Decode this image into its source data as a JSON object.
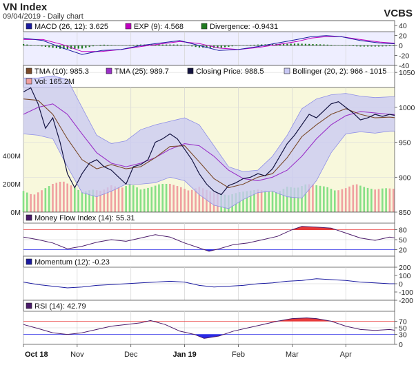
{
  "header": {
    "title": "VN Index",
    "subtitle": "09/04/2019 - Daily chart",
    "source": "VCBS"
  },
  "colors": {
    "macd": "#1a1aa0",
    "exp": "#c000c0",
    "divergence": "#1e7a1e",
    "tma10": "#7a4a2a",
    "tma25": "#9a30c8",
    "close": "#121240",
    "bollinger_fill": "#c8c8f4",
    "bollinger_edge": "#8e8ee6",
    "vol_up": "#86e086",
    "vol_down": "#f0a0a0",
    "mfi": "#4a1a6a",
    "momentum": "#1a1aa0",
    "rsi": "#4a1a6a",
    "over": "#e83a3a",
    "under": "#2a2ae6",
    "panel_bg": "#eeeeff",
    "main_bg": "#f8f8dc"
  },
  "macd_panel": {
    "legend": [
      {
        "label": "MACD (26, 12): 3.625",
        "color": "#1a1aa0"
      },
      {
        "label": "EXP (9): 4.568",
        "color": "#c000c0"
      },
      {
        "label": "Divergence: -0.9431",
        "color": "#1e7a1e"
      }
    ],
    "y_ticks": [
      "40",
      "20",
      "0",
      "-20",
      "-40"
    ]
  },
  "price_panel": {
    "legend": [
      {
        "label": "TMA (10): 985.3",
        "color": "#7a4a2a"
      },
      {
        "label": "TMA (25): 989.7",
        "color": "#9a30c8"
      },
      {
        "label": "Closing Price: 988.5",
        "color": "#121240"
      },
      {
        "label": "Bollinger (20, 2): 966 - 1015",
        "color": "#c8c8f4"
      },
      {
        "label": "Vol: 165.2M",
        "color": "#f0a0a0"
      }
    ],
    "y_ticks": [
      "1050",
      "1000",
      "950",
      "900",
      "850"
    ],
    "vol_ticks": [
      "400M",
      "200M",
      "0M"
    ]
  },
  "mfi_panel": {
    "legend": "Money Flow Index (14): 55.31",
    "y_ticks": [
      "80",
      "50",
      "20"
    ]
  },
  "momentum_panel": {
    "legend": "Momentum (12): -0.23",
    "y_ticks": [
      "200",
      "100",
      "0",
      "-100",
      "-200"
    ]
  },
  "rsi_panel": {
    "legend": "RSI (14): 42.79",
    "y_ticks": [
      "70",
      "50",
      "30",
      "0"
    ]
  },
  "x_axis": {
    "labels": [
      "Oct 18",
      "Nov",
      "Dec",
      "Jan 19",
      "Feb",
      "Mar",
      "Apr"
    ],
    "bold": [
      "Oct 18",
      "Jan 19"
    ]
  },
  "chart_data": {
    "type": "line",
    "title": "VN Index",
    "subtitle": "09/04/2019 - Daily chart",
    "x_range": [
      "2018-10-01",
      "2019-04-09"
    ],
    "close": [
      [
        0,
        1022
      ],
      [
        3,
        1028
      ],
      [
        6,
        1005
      ],
      [
        9,
        970
      ],
      [
        12,
        985
      ],
      [
        15,
        950
      ],
      [
        18,
        905
      ],
      [
        21,
        885
      ],
      [
        24,
        905
      ],
      [
        27,
        920
      ],
      [
        30,
        925
      ],
      [
        33,
        915
      ],
      [
        36,
        910
      ],
      [
        39,
        900
      ],
      [
        42,
        890
      ],
      [
        45,
        915
      ],
      [
        48,
        918
      ],
      [
        51,
        925
      ],
      [
        54,
        950
      ],
      [
        57,
        955
      ],
      [
        60,
        962
      ],
      [
        63,
        955
      ],
      [
        66,
        940
      ],
      [
        69,
        925
      ],
      [
        72,
        905
      ],
      [
        75,
        890
      ],
      [
        78,
        880
      ],
      [
        81,
        875
      ],
      [
        84,
        888
      ],
      [
        87,
        892
      ],
      [
        90,
        898
      ],
      [
        93,
        900
      ],
      [
        96,
        905
      ],
      [
        99,
        902
      ],
      [
        102,
        912
      ],
      [
        105,
        930
      ],
      [
        108,
        948
      ],
      [
        111,
        960
      ],
      [
        114,
        975
      ],
      [
        117,
        990
      ],
      [
        120,
        985
      ],
      [
        123,
        995
      ],
      [
        126,
        1005
      ],
      [
        129,
        1008
      ],
      [
        132,
        1000
      ],
      [
        135,
        992
      ],
      [
        138,
        982
      ],
      [
        141,
        985
      ],
      [
        144,
        990
      ],
      [
        147,
        987
      ],
      [
        150,
        990
      ],
      [
        152,
        988.5
      ]
    ],
    "tma10": [
      [
        0,
        1012
      ],
      [
        6,
        1010
      ],
      [
        12,
        990
      ],
      [
        18,
        955
      ],
      [
        24,
        925
      ],
      [
        30,
        912
      ],
      [
        36,
        918
      ],
      [
        42,
        912
      ],
      [
        48,
        915
      ],
      [
        54,
        928
      ],
      [
        60,
        944
      ],
      [
        66,
        945
      ],
      [
        72,
        922
      ],
      [
        78,
        898
      ],
      [
        84,
        885
      ],
      [
        90,
        890
      ],
      [
        96,
        900
      ],
      [
        102,
        905
      ],
      [
        108,
        928
      ],
      [
        114,
        958
      ],
      [
        120,
        975
      ],
      [
        126,
        990
      ],
      [
        132,
        998
      ],
      [
        138,
        990
      ],
      [
        144,
        985
      ],
      [
        150,
        986
      ],
      [
        152,
        985.3
      ]
    ],
    "tma25": [
      [
        0,
        990
      ],
      [
        6,
        1000
      ],
      [
        12,
        1005
      ],
      [
        18,
        990
      ],
      [
        24,
        962
      ],
      [
        30,
        935
      ],
      [
        36,
        920
      ],
      [
        42,
        915
      ],
      [
        48,
        920
      ],
      [
        54,
        928
      ],
      [
        60,
        940
      ],
      [
        66,
        948
      ],
      [
        72,
        945
      ],
      [
        78,
        930
      ],
      [
        84,
        910
      ],
      [
        90,
        898
      ],
      [
        96,
        895
      ],
      [
        102,
        900
      ],
      [
        108,
        910
      ],
      [
        114,
        930
      ],
      [
        120,
        955
      ],
      [
        126,
        975
      ],
      [
        132,
        988
      ],
      [
        138,
        994
      ],
      [
        144,
        992
      ],
      [
        150,
        990
      ],
      [
        152,
        989.7
      ]
    ],
    "bollinger_upper": [
      [
        0,
        1042
      ],
      [
        6,
        1042
      ],
      [
        12,
        1045
      ],
      [
        18,
        1040
      ],
      [
        24,
        1000
      ],
      [
        30,
        960
      ],
      [
        36,
        948
      ],
      [
        42,
        952
      ],
      [
        48,
        968
      ],
      [
        54,
        975
      ],
      [
        60,
        980
      ],
      [
        66,
        985
      ],
      [
        72,
        975
      ],
      [
        78,
        945
      ],
      [
        84,
        915
      ],
      [
        90,
        908
      ],
      [
        96,
        910
      ],
      [
        102,
        930
      ],
      [
        108,
        960
      ],
      [
        114,
        998
      ],
      [
        120,
        1012
      ],
      [
        126,
        1018
      ],
      [
        132,
        1020
      ],
      [
        138,
        1016
      ],
      [
        144,
        1014
      ],
      [
        150,
        1015
      ],
      [
        152,
        1015
      ]
    ],
    "bollinger_lower": [
      [
        0,
        962
      ],
      [
        6,
        960
      ],
      [
        12,
        955
      ],
      [
        18,
        915
      ],
      [
        24,
        878
      ],
      [
        30,
        872
      ],
      [
        36,
        880
      ],
      [
        42,
        890
      ],
      [
        48,
        890
      ],
      [
        54,
        892
      ],
      [
        60,
        900
      ],
      [
        66,
        895
      ],
      [
        72,
        875
      ],
      [
        78,
        860
      ],
      [
        84,
        855
      ],
      [
        90,
        868
      ],
      [
        96,
        878
      ],
      [
        102,
        880
      ],
      [
        108,
        872
      ],
      [
        114,
        870
      ],
      [
        120,
        895
      ],
      [
        126,
        935
      ],
      [
        132,
        962
      ],
      [
        138,
        965
      ],
      [
        144,
        963
      ],
      [
        150,
        966
      ],
      [
        152,
        966
      ]
    ],
    "volume_M": [
      [
        0,
        150
      ],
      [
        4,
        120
      ],
      [
        8,
        160
      ],
      [
        12,
        200
      ],
      [
        16,
        220
      ],
      [
        20,
        185
      ],
      [
        24,
        140
      ],
      [
        28,
        160
      ],
      [
        32,
        150
      ],
      [
        36,
        190
      ],
      [
        40,
        170
      ],
      [
        44,
        200
      ],
      [
        48,
        160
      ],
      [
        52,
        175
      ],
      [
        56,
        200
      ],
      [
        60,
        200
      ],
      [
        64,
        180
      ],
      [
        68,
        150
      ],
      [
        72,
        180
      ],
      [
        76,
        150
      ],
      [
        80,
        130
      ],
      [
        84,
        120
      ],
      [
        88,
        140
      ],
      [
        92,
        150
      ],
      [
        96,
        160
      ],
      [
        100,
        150
      ],
      [
        104,
        140
      ],
      [
        108,
        180
      ],
      [
        112,
        170
      ],
      [
        116,
        200
      ],
      [
        120,
        190
      ],
      [
        124,
        180
      ],
      [
        128,
        150
      ],
      [
        132,
        170
      ],
      [
        136,
        200
      ],
      [
        140,
        175
      ],
      [
        144,
        160
      ],
      [
        148,
        170
      ],
      [
        152,
        165.2
      ]
    ],
    "macd": [
      [
        0,
        15
      ],
      [
        8,
        10
      ],
      [
        16,
        -5
      ],
      [
        24,
        -18
      ],
      [
        32,
        -10
      ],
      [
        40,
        -8
      ],
      [
        48,
        0
      ],
      [
        56,
        5
      ],
      [
        64,
        10
      ],
      [
        72,
        0
      ],
      [
        80,
        -10
      ],
      [
        88,
        -8
      ],
      [
        96,
        -2
      ],
      [
        104,
        5
      ],
      [
        112,
        12
      ],
      [
        118,
        18
      ],
      [
        124,
        20
      ],
      [
        130,
        18
      ],
      [
        138,
        10
      ],
      [
        146,
        5
      ],
      [
        152,
        3.625
      ]
    ],
    "exp": [
      [
        0,
        12
      ],
      [
        8,
        12
      ],
      [
        16,
        2
      ],
      [
        24,
        -12
      ],
      [
        32,
        -12
      ],
      [
        40,
        -8
      ],
      [
        48,
        -2
      ],
      [
        56,
        3
      ],
      [
        64,
        8
      ],
      [
        72,
        4
      ],
      [
        80,
        -5
      ],
      [
        88,
        -8
      ],
      [
        96,
        -4
      ],
      [
        104,
        2
      ],
      [
        112,
        8
      ],
      [
        118,
        15
      ],
      [
        124,
        18
      ],
      [
        130,
        18
      ],
      [
        138,
        12
      ],
      [
        146,
        7
      ],
      [
        152,
        4.568
      ]
    ],
    "divergence": [
      [
        0,
        3
      ],
      [
        8,
        -2
      ],
      [
        16,
        -7
      ],
      [
        24,
        -6
      ],
      [
        32,
        2
      ],
      [
        40,
        0
      ],
      [
        48,
        2
      ],
      [
        56,
        2
      ],
      [
        64,
        2
      ],
      [
        72,
        -4
      ],
      [
        80,
        -5
      ],
      [
        88,
        0
      ],
      [
        96,
        2
      ],
      [
        104,
        3
      ],
      [
        112,
        4
      ],
      [
        118,
        3
      ],
      [
        124,
        2
      ],
      [
        130,
        0
      ],
      [
        138,
        -2
      ],
      [
        146,
        -2
      ],
      [
        152,
        -0.9431
      ]
    ],
    "mfi": [
      [
        0,
        58
      ],
      [
        6,
        50
      ],
      [
        12,
        40
      ],
      [
        18,
        22
      ],
      [
        24,
        30
      ],
      [
        30,
        42
      ],
      [
        36,
        50
      ],
      [
        42,
        45
      ],
      [
        48,
        55
      ],
      [
        54,
        65
      ],
      [
        60,
        58
      ],
      [
        66,
        40
      ],
      [
        72,
        25
      ],
      [
        76,
        15
      ],
      [
        80,
        22
      ],
      [
        86,
        35
      ],
      [
        92,
        40
      ],
      [
        98,
        50
      ],
      [
        104,
        60
      ],
      [
        110,
        80
      ],
      [
        114,
        90
      ],
      [
        120,
        88
      ],
      [
        126,
        85
      ],
      [
        132,
        70
      ],
      [
        138,
        55
      ],
      [
        144,
        48
      ],
      [
        150,
        58
      ],
      [
        152,
        55.31
      ]
    ],
    "momentum": [
      [
        0,
        20
      ],
      [
        6,
        -10
      ],
      [
        12,
        -30
      ],
      [
        18,
        -50
      ],
      [
        24,
        -40
      ],
      [
        30,
        -20
      ],
      [
        36,
        -10
      ],
      [
        42,
        0
      ],
      [
        48,
        10
      ],
      [
        54,
        20
      ],
      [
        60,
        30
      ],
      [
        66,
        20
      ],
      [
        72,
        -20
      ],
      [
        78,
        -40
      ],
      [
        84,
        -30
      ],
      [
        90,
        -20
      ],
      [
        96,
        0
      ],
      [
        102,
        10
      ],
      [
        108,
        30
      ],
      [
        114,
        40
      ],
      [
        120,
        60
      ],
      [
        126,
        50
      ],
      [
        132,
        40
      ],
      [
        138,
        20
      ],
      [
        144,
        10
      ],
      [
        150,
        0
      ],
      [
        152,
        -0.23
      ]
    ],
    "rsi": [
      [
        0,
        60
      ],
      [
        6,
        48
      ],
      [
        12,
        35
      ],
      [
        18,
        30
      ],
      [
        24,
        35
      ],
      [
        30,
        45
      ],
      [
        36,
        55
      ],
      [
        42,
        60
      ],
      [
        48,
        65
      ],
      [
        52,
        72
      ],
      [
        58,
        60
      ],
      [
        64,
        40
      ],
      [
        70,
        30
      ],
      [
        74,
        18
      ],
      [
        80,
        25
      ],
      [
        86,
        40
      ],
      [
        92,
        50
      ],
      [
        98,
        60
      ],
      [
        104,
        70
      ],
      [
        110,
        78
      ],
      [
        116,
        80
      ],
      [
        120,
        78
      ],
      [
        126,
        70
      ],
      [
        132,
        55
      ],
      [
        138,
        45
      ],
      [
        144,
        42
      ],
      [
        150,
        45
      ],
      [
        152,
        42.79
      ]
    ],
    "x_month_starts": [
      [
        0,
        "Oct 18"
      ],
      [
        22,
        "Nov"
      ],
      [
        44,
        "Dec"
      ],
      [
        66,
        "Jan 19"
      ],
      [
        88,
        "Feb"
      ],
      [
        110,
        "Mar"
      ],
      [
        132,
        "Apr"
      ]
    ],
    "macd_range": [
      -40,
      50
    ],
    "price_range": [
      850,
      1060
    ],
    "volume_range": [
      0,
      600
    ],
    "mfi_range": [
      0,
      100
    ],
    "momentum_range": [
      -200,
      200
    ],
    "rsi_range": [
      0,
      100
    ]
  }
}
